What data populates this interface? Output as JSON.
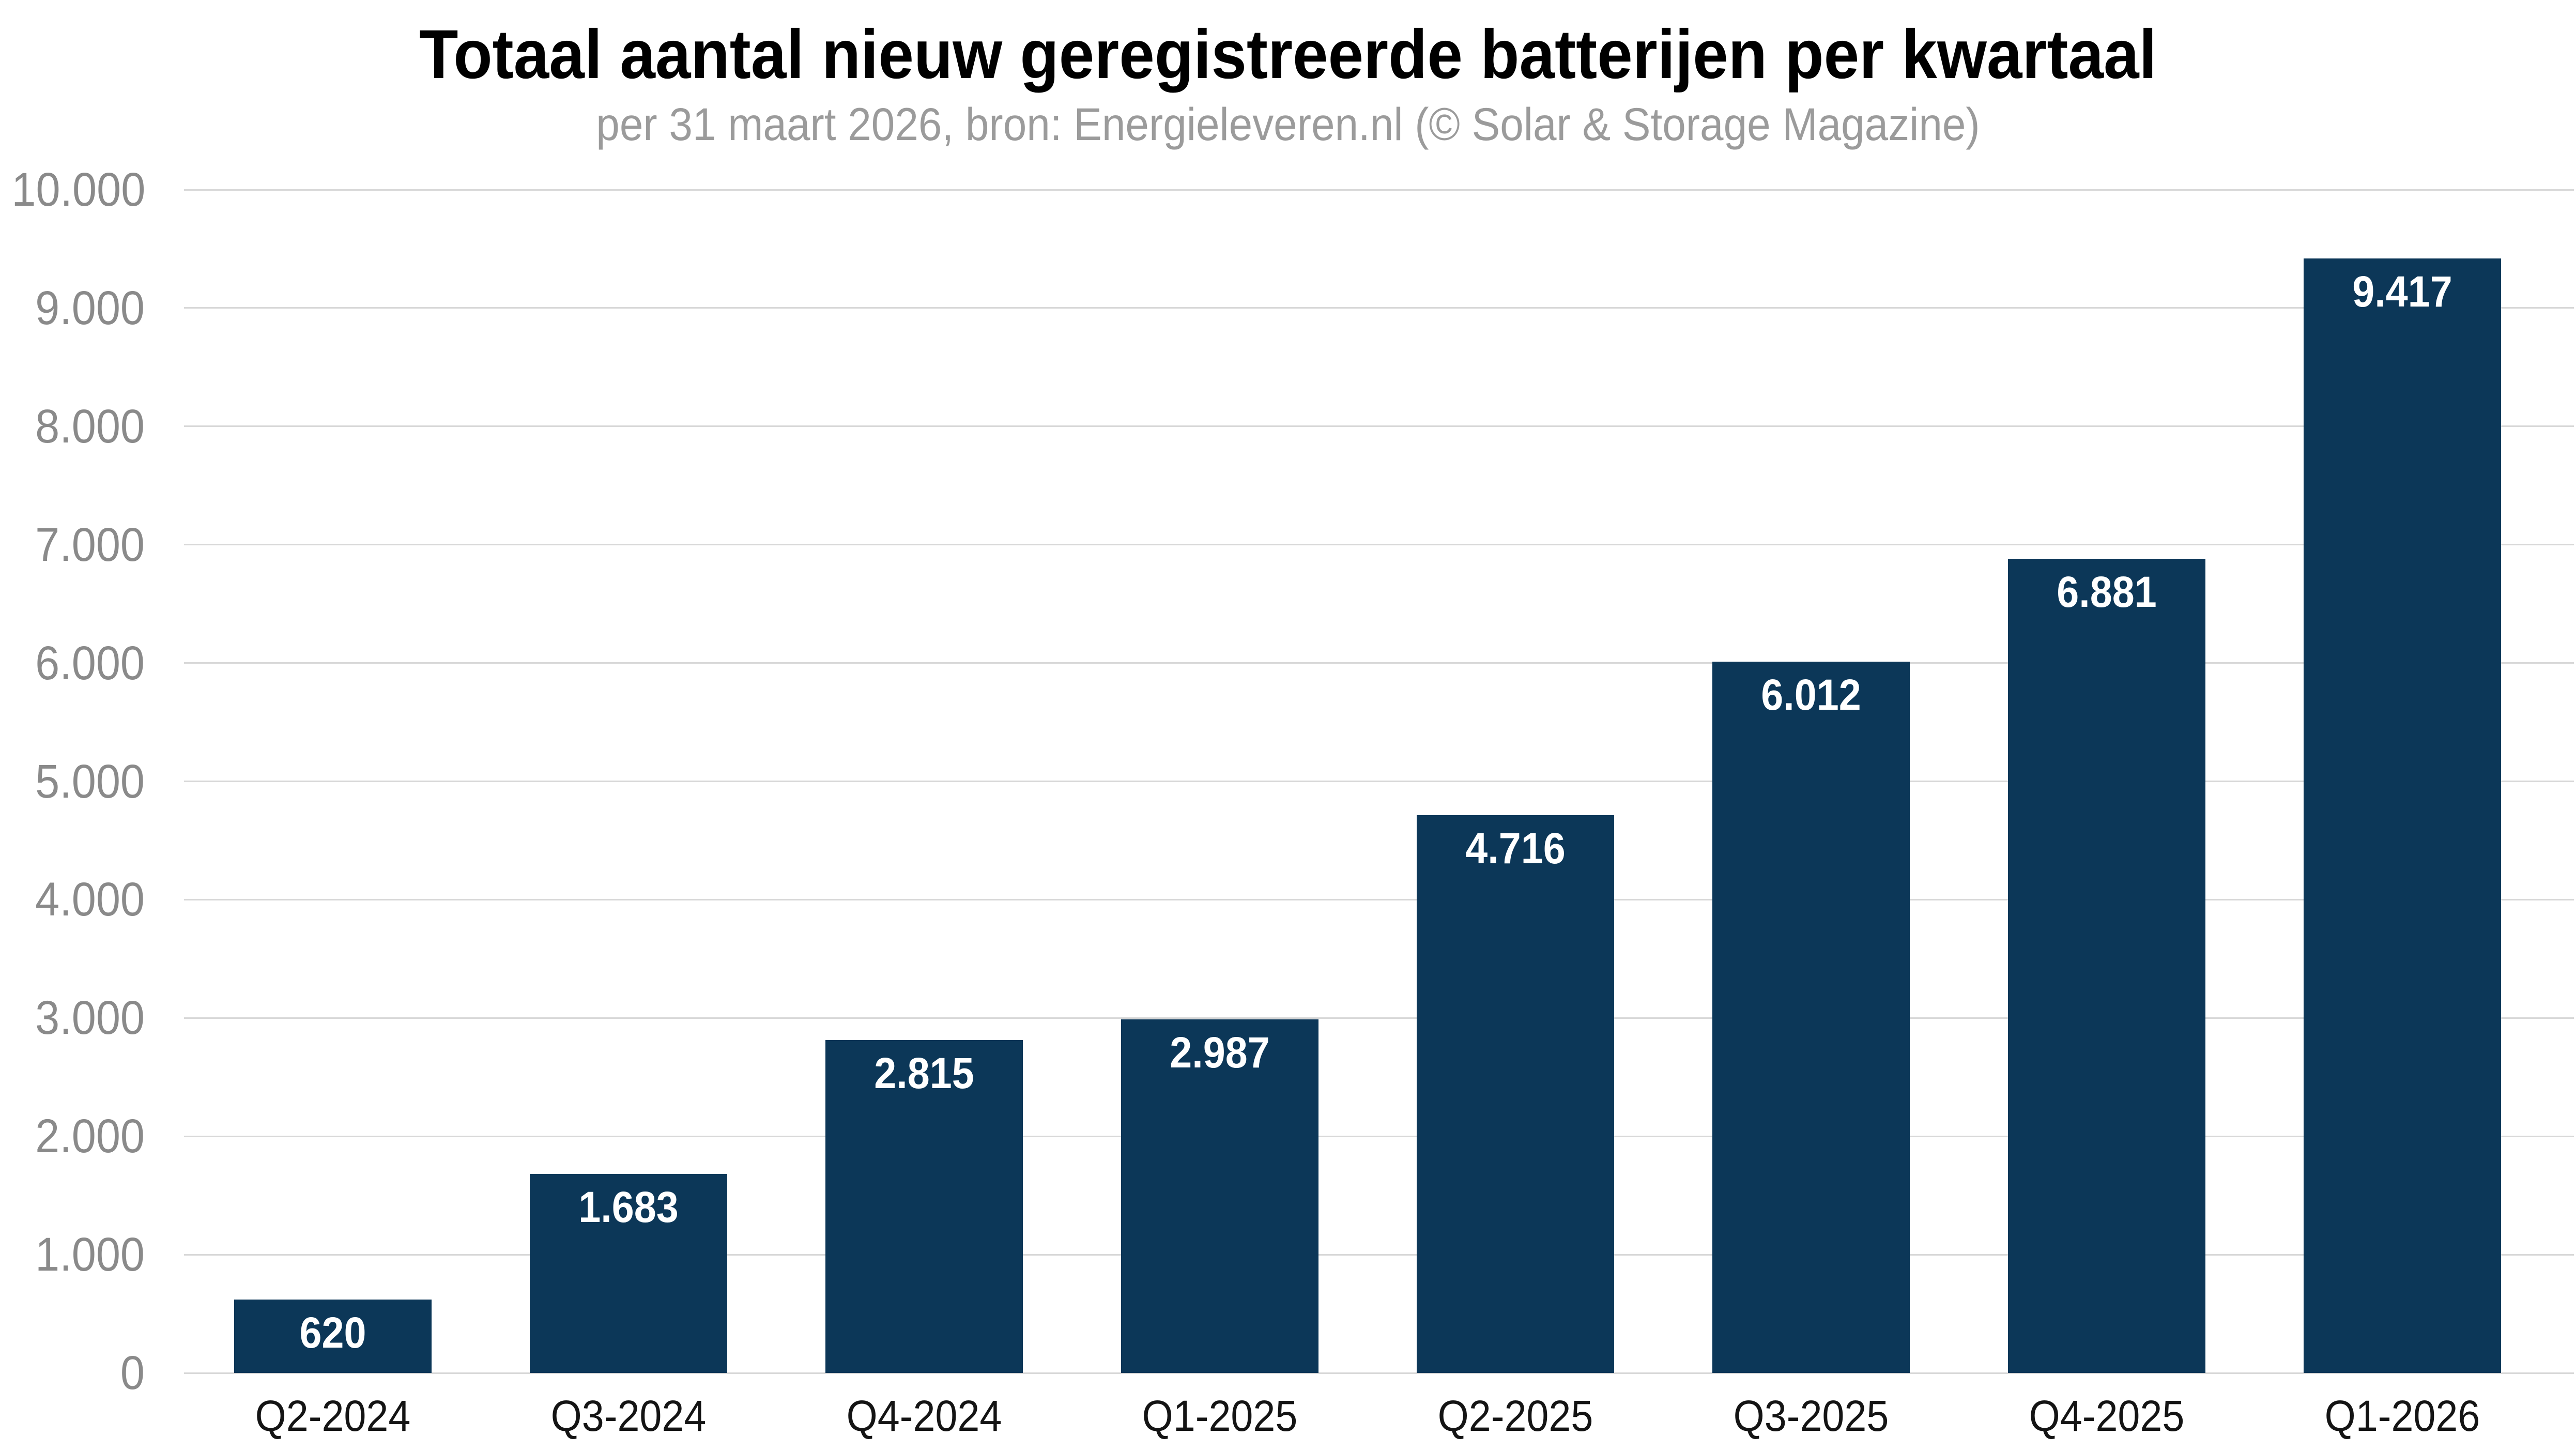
{
  "chart_data": {
    "type": "bar",
    "title": "Totaal aantal nieuw geregistreerde batterijen per kwartaal",
    "subtitle": "per 31 maart 2026, bron: Energieleveren.nl (© Solar & Storage Magazine)",
    "categories": [
      "Q2-2024",
      "Q3-2024",
      "Q4-2024",
      "Q1-2025",
      "Q2-2025",
      "Q3-2025",
      "Q4-2025",
      "Q1-2026"
    ],
    "values": [
      620,
      1683,
      2815,
      2987,
      4716,
      6012,
      6881,
      9417
    ],
    "value_labels": [
      "620",
      "1.683",
      "2.815",
      "2.987",
      "4.716",
      "6.012",
      "6.881",
      "9.417"
    ],
    "xlabel": "",
    "ylabel": "",
    "ylim": [
      0,
      10000
    ],
    "y_tick_values": [
      0,
      1000,
      2000,
      3000,
      4000,
      5000,
      6000,
      7000,
      8000,
      9000,
      10000
    ],
    "y_tick_labels": [
      "0",
      "1.000",
      "2.000",
      "3.000",
      "4.000",
      "5.000",
      "6.000",
      "7.000",
      "8.000",
      "9.000",
      "10.000"
    ],
    "grid": true,
    "legend_position": "none",
    "colors": {
      "bar": "#0c3758",
      "value_label": "#ffffff",
      "gridline": "#d8d8d8",
      "axis_tick_label": "#8a8a8a",
      "category_label": "#141414",
      "title": "#000000",
      "subtitle": "#9b9b9b",
      "background": "#ffffff"
    }
  }
}
